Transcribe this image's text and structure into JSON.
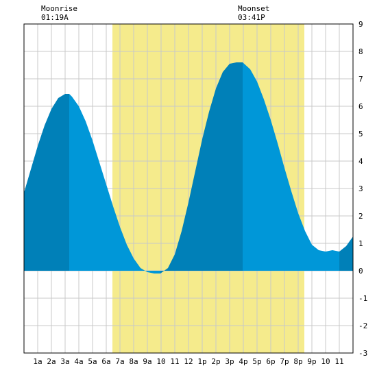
{
  "moon": {
    "moonrise_label": "Moonrise",
    "moonrise_time": "01:19A",
    "moonset_label": "Moonset",
    "moonset_time": "03:41P"
  },
  "chart_data": {
    "type": "area",
    "title": "",
    "xlabel": "",
    "ylabel": "",
    "xlim": [
      0,
      24
    ],
    "ylim": [
      -3,
      9
    ],
    "grid": true,
    "x_tick_labels": [
      "1a",
      "2a",
      "3a",
      "4a",
      "5a",
      "6a",
      "7a",
      "8a",
      "9a",
      "10",
      "11",
      "12",
      "1p",
      "2p",
      "3p",
      "4p",
      "5p",
      "6p",
      "7p",
      "8p",
      "9p",
      "10",
      "11"
    ],
    "y_tick_labels": [
      "9",
      "8",
      "7",
      "6",
      "5",
      "4",
      "3",
      "2",
      "1",
      "0",
      "-1",
      "-2",
      "-3"
    ],
    "daylight_hours": [
      6.45,
      20.45
    ],
    "extremes": [
      {
        "hour": 3.3,
        "height": 6.45,
        "kind": "high"
      },
      {
        "hour": 9.95,
        "height": -0.1,
        "kind": "low"
      },
      {
        "hour": 15.95,
        "height": 7.6,
        "kind": "high"
      },
      {
        "hour": 23.0,
        "height": 0.7,
        "kind": "low"
      }
    ],
    "series": [
      {
        "x": [
          0,
          0.5,
          1,
          1.5,
          2,
          2.5,
          3,
          3.3,
          3.5,
          4,
          4.5,
          5,
          5.5,
          6,
          6.5,
          7,
          7.5,
          8,
          8.5,
          9,
          9.5,
          9.95,
          10.5,
          11,
          11.5,
          12,
          12.5,
          13,
          13.5,
          14,
          14.5,
          15,
          15.5,
          15.95,
          16.5,
          17,
          17.5,
          18,
          18.5,
          19,
          19.5,
          20,
          20.5,
          21,
          21.5,
          22,
          22.5,
          23,
          23.5,
          24
        ],
        "values": [
          2.85,
          3.7,
          4.55,
          5.3,
          5.9,
          6.3,
          6.45,
          6.45,
          6.35,
          6.0,
          5.45,
          4.75,
          3.95,
          3.15,
          2.35,
          1.6,
          0.95,
          0.45,
          0.1,
          -0.05,
          -0.1,
          -0.1,
          0.1,
          0.6,
          1.45,
          2.5,
          3.65,
          4.8,
          5.8,
          6.65,
          7.25,
          7.55,
          7.6,
          7.6,
          7.35,
          6.9,
          6.25,
          5.5,
          4.65,
          3.75,
          2.9,
          2.1,
          1.45,
          0.95,
          0.75,
          0.7,
          0.75,
          0.7,
          0.9,
          1.25
        ]
      }
    ]
  },
  "colors": {
    "daylight": "#f5eb8c",
    "water_light": "#0097d8",
    "water_dark": "#0080b8",
    "grid": "#c8c8c8",
    "border": "#000000"
  }
}
